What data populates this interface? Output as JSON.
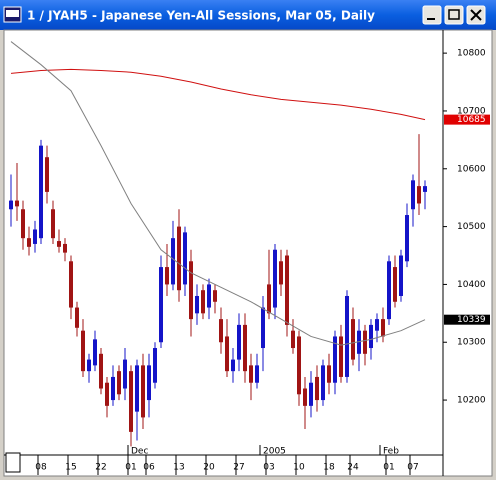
{
  "chart_data": {
    "type": "candlestick",
    "title": "1 / JYAH5 - Japanese Yen-All Sessions, Mar 05, Daily",
    "categories": [
      null,
      null,
      null,
      null,
      null,
      "08",
      null,
      null,
      null,
      null,
      "15",
      null,
      null,
      null,
      null,
      "22",
      null,
      null,
      null,
      null,
      "01",
      null,
      null,
      "06",
      null,
      null,
      null,
      null,
      "13",
      null,
      null,
      null,
      null,
      "20",
      null,
      null,
      null,
      null,
      "27",
      null,
      null,
      null,
      null,
      "03",
      null,
      null,
      null,
      null,
      "10",
      null,
      null,
      null,
      null,
      "18",
      null,
      null,
      null,
      "24",
      null,
      null,
      null,
      null,
      null,
      "01",
      null,
      null,
      null,
      "07",
      null,
      null
    ],
    "months": [
      {
        "label": "Dec",
        "at": 21
      },
      {
        "label": "2005",
        "at": 43
      },
      {
        "label": "Feb",
        "at": 63
      }
    ],
    "open": [
      10530,
      10545,
      10530,
      10480,
      10470,
      10480,
      10620,
      10530,
      10475,
      10470,
      10440,
      10360,
      10320,
      10250,
      10260,
      10280,
      10230,
      10200,
      10250,
      10220,
      10250,
      10180,
      10260,
      10200,
      10230,
      10300,
      10430,
      10400,
      10500,
      10400,
      10440,
      10350,
      10390,
      10360,
      10390,
      10340,
      10310,
      10250,
      10270,
      10330,
      10260,
      10230,
      10290,
      10400,
      10360,
      10440,
      10450,
      10320,
      10310,
      10220,
      10190,
      10240,
      10200,
      10260,
      10230,
      10310,
      10240,
      10340,
      10280,
      10320,
      10290,
      10320,
      10340,
      10340,
      10430,
      10380,
      10440,
      10530,
      10570,
      10560
    ],
    "high": [
      10590,
      10610,
      10545,
      10500,
      10510,
      10650,
      10640,
      10545,
      10495,
      10480,
      10450,
      10370,
      10340,
      10280,
      10320,
      10290,
      10240,
      10260,
      10260,
      10290,
      10260,
      10270,
      10280,
      10280,
      10300,
      10450,
      10470,
      10510,
      10530,
      10500,
      10460,
      10400,
      10400,
      10410,
      10400,
      10360,
      10340,
      10290,
      10350,
      10350,
      10280,
      10280,
      10380,
      10460,
      10470,
      10460,
      10460,
      10340,
      10320,
      10240,
      10250,
      10260,
      10270,
      10280,
      10320,
      10330,
      10390,
      10360,
      10340,
      10330,
      10340,
      10350,
      10360,
      10450,
      10450,
      10460,
      10540,
      10590,
      10660,
      10580
    ],
    "low": [
      10500,
      10510,
      10460,
      10450,
      10455,
      10470,
      10540,
      10470,
      10455,
      10440,
      10340,
      10310,
      10240,
      10230,
      10250,
      10210,
      10170,
      10190,
      10200,
      10200,
      10120,
      10130,
      10150,
      10170,
      10220,
      10290,
      10380,
      10390,
      10370,
      10380,
      10310,
      10330,
      10340,
      10340,
      10350,
      10280,
      10240,
      10230,
      10250,
      10230,
      10200,
      10220,
      10250,
      10340,
      10340,
      10380,
      10310,
      10280,
      10190,
      10150,
      10170,
      10180,
      10190,
      10210,
      10210,
      10230,
      10230,
      10260,
      10250,
      10260,
      10270,
      10300,
      10300,
      10330,
      10360,
      10370,
      10430,
      10500,
      10520,
      10530
    ],
    "close": [
      10545,
      10535,
      10480,
      10465,
      10495,
      10640,
      10560,
      10480,
      10465,
      10455,
      10360,
      10325,
      10250,
      10270,
      10305,
      10220,
      10190,
      10240,
      10210,
      10270,
      10145,
      10260,
      10170,
      10260,
      10290,
      10430,
      10400,
      10480,
      10390,
      10490,
      10340,
      10380,
      10350,
      10400,
      10370,
      10300,
      10250,
      10270,
      10330,
      10250,
      10230,
      10260,
      10360,
      10350,
      10460,
      10400,
      10330,
      10290,
      10210,
      10190,
      10230,
      10200,
      10260,
      10230,
      10310,
      10240,
      10380,
      10270,
      10320,
      10280,
      10330,
      10340,
      10310,
      10440,
      10370,
      10450,
      10520,
      10580,
      10540,
      10570
    ],
    "up_color": "#1414c8",
    "down_color": "#a01414",
    "series": [
      {
        "color": "#d01010",
        "x": [
          0,
          5,
          10,
          15,
          20,
          25,
          30,
          35,
          40,
          45,
          50,
          55,
          60,
          65,
          69
        ],
        "values": [
          10765,
          10770,
          10772,
          10770,
          10767,
          10760,
          10750,
          10738,
          10728,
          10720,
          10715,
          10710,
          10703,
          10694,
          10685
        ],
        "label_bg": "#e00000",
        "label_fg": "#ffffff"
      },
      {
        "color": "#808080",
        "x": [
          0,
          5,
          10,
          15,
          20,
          25,
          30,
          35,
          40,
          45,
          50,
          55,
          60,
          65,
          69
        ],
        "values": [
          10820,
          10780,
          10735,
          10640,
          10540,
          10460,
          10420,
          10395,
          10370,
          10340,
          10310,
          10295,
          10305,
          10320,
          10339
        ],
        "label_bg": "#000000",
        "label_fg": "#ffffff"
      }
    ],
    "ylim": [
      10105,
      10840
    ],
    "yticks": [
      10200,
      10300,
      10400,
      10500,
      10600,
      10700,
      10800
    ]
  }
}
